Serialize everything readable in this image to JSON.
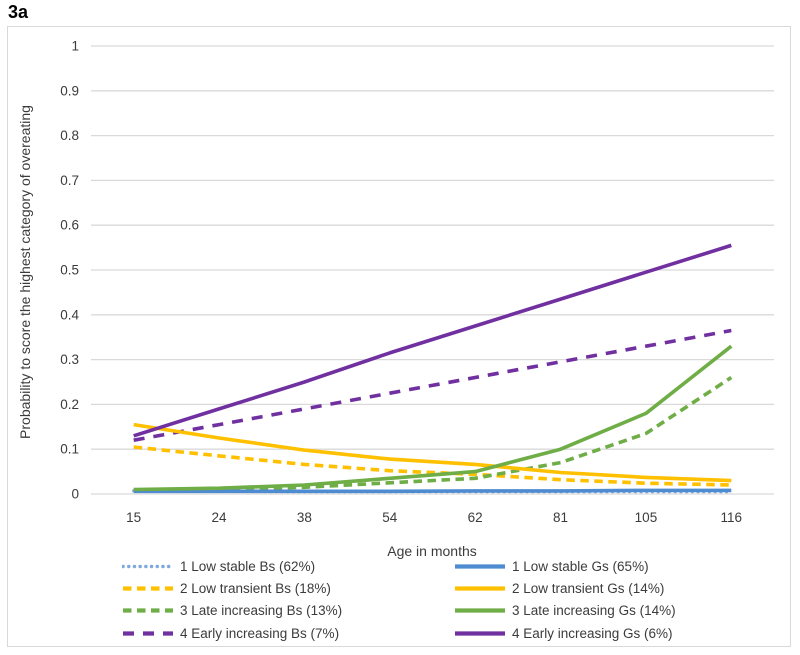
{
  "figure_label": "3a",
  "colors": {
    "grid": "#d9d9d9",
    "frame_border": "#d9d9d9",
    "text": "#3b3b3b",
    "blue_dotted": "#7fa9dc",
    "blue_solid": "#4e8bd0",
    "yellow": "#ffc000",
    "green": "#6fad47",
    "purple": "#7030a0"
  },
  "chart_data": {
    "type": "line",
    "title": "3a",
    "xlabel": "Age in months",
    "ylabel": "Probability to score the highest category of overeating",
    "x_categories": [
      15,
      24,
      38,
      54,
      62,
      81,
      105,
      116
    ],
    "x_tick_labels": [
      "15",
      "24",
      "38",
      "54",
      "62",
      "81",
      "105",
      "116"
    ],
    "y_tick_labels": [
      "0",
      "0.1",
      "0.2",
      "0.3",
      "0.4",
      "0.5",
      "0.6",
      "0.7",
      "0.8",
      "0.9",
      "1"
    ],
    "ylim": [
      0,
      1
    ],
    "y_tick_step": 0.1,
    "grid": true,
    "legend_position": "bottom, two columns (Bs left, Gs right)",
    "series": [
      {
        "name": "1 Low stable Bs (62%)",
        "color": "#7fa9dc",
        "style": "dotted",
        "values": [
          0.007,
          0.006,
          0.005,
          0.005,
          0.005,
          0.005,
          0.005,
          0.005
        ]
      },
      {
        "name": "2 Low transient Bs (18%)",
        "color": "#ffc000",
        "style": "dashed",
        "values": [
          0.105,
          0.085,
          0.066,
          0.052,
          0.044,
          0.032,
          0.024,
          0.02
        ]
      },
      {
        "name": "3 Late increasing Bs (13%)",
        "color": "#6fad47",
        "style": "dashed",
        "values": [
          0.008,
          0.01,
          0.015,
          0.025,
          0.035,
          0.07,
          0.135,
          0.26
        ]
      },
      {
        "name": "4 Early increasing Bs (7%)",
        "color": "#7030a0",
        "style": "long-dashed",
        "values": [
          0.12,
          0.155,
          0.19,
          0.225,
          0.26,
          0.295,
          0.33,
          0.365
        ]
      },
      {
        "name": "1 Low stable Gs (65%)",
        "color": "#4e8bd0",
        "style": "solid",
        "values": [
          0.006,
          0.006,
          0.006,
          0.006,
          0.007,
          0.007,
          0.008,
          0.008
        ]
      },
      {
        "name": "2 Low transient Gs (14%)",
        "color": "#ffc000",
        "style": "solid",
        "values": [
          0.155,
          0.125,
          0.098,
          0.078,
          0.066,
          0.048,
          0.037,
          0.03
        ]
      },
      {
        "name": "3 Late increasing Gs (14%)",
        "color": "#6fad47",
        "style": "solid",
        "values": [
          0.01,
          0.013,
          0.02,
          0.035,
          0.05,
          0.1,
          0.18,
          0.33
        ]
      },
      {
        "name": "4 Early increasing Gs (6%)",
        "color": "#7030a0",
        "style": "solid",
        "values": [
          0.13,
          0.19,
          0.25,
          0.315,
          0.375,
          0.435,
          0.495,
          0.555
        ]
      }
    ],
    "legend_columns": {
      "left": [
        0,
        1,
        2,
        3
      ],
      "right": [
        4,
        5,
        6,
        7
      ]
    }
  }
}
